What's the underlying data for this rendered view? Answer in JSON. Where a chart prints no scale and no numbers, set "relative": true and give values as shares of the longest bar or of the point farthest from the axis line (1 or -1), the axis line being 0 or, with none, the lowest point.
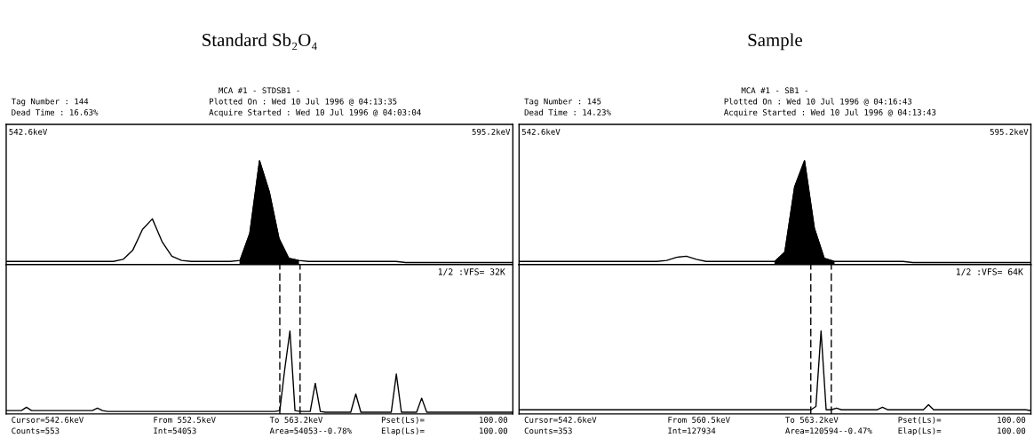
{
  "chart_data": [
    {
      "type": "line",
      "title": "Standard Sb₂O₄",
      "relative": true,
      "tick_labels": false,
      "categories": [
        null,
        null,
        null,
        null,
        null,
        null,
        null,
        null,
        null,
        null,
        null,
        null,
        null,
        null,
        null,
        null,
        null,
        null,
        null,
        null,
        null,
        null,
        null,
        null,
        null,
        null,
        null,
        null,
        null,
        null,
        null,
        null,
        null,
        null,
        null,
        null,
        null,
        null,
        null,
        null,
        null,
        null,
        null,
        null,
        null,
        null,
        null,
        null,
        null,
        null,
        null,
        null,
        null
      ],
      "series": [
        {
          "color": "#000000",
          "values": [
            0.03,
            0.03,
            0.03,
            0.03,
            0.03,
            0.03,
            0.03,
            0.03,
            0.03,
            0.03,
            0.03,
            0.03,
            0.05,
            0.14,
            0.34,
            0.44,
            0.22,
            0.08,
            0.04,
            0.03,
            0.03,
            0.03,
            0.03,
            0.03,
            0.04,
            0.3,
            1,
            0.7,
            0.25,
            0.06,
            0.04,
            0.03,
            0.03,
            0.03,
            0.03,
            0.03,
            0.03,
            0.03,
            0.03,
            0.03,
            0.03,
            0.02,
            0.02,
            0.02,
            0.02,
            0.02,
            0.02,
            0.02,
            0.02,
            0.02,
            0.02,
            0.02,
            0.02
          ]
        },
        {
          "type": "area",
          "color": "#000000",
          "values": [
            null,
            null,
            null,
            null,
            null,
            null,
            null,
            null,
            null,
            null,
            null,
            null,
            null,
            null,
            null,
            null,
            null,
            null,
            null,
            null,
            null,
            null,
            null,
            null,
            0.04,
            0.3,
            1,
            0.7,
            0.25,
            0.06,
            0.04,
            null,
            null,
            null,
            null,
            null,
            null,
            null,
            null,
            null,
            null,
            null,
            null,
            null,
            null,
            null,
            null,
            null,
            null,
            null,
            null,
            null,
            null
          ]
        }
      ],
      "annotations": [
        "MCA #1 - STDSB1 -",
        "Tag Number : 144",
        "Dead Time : 16.63%",
        "Plotted On : Wed 10 Jul 1996 @ 04:13:35",
        "Acquire Started : Wed 10 Jul 1996 @ 04:03:04",
        "542.6keV",
        "595.2keV"
      ]
    },
    {
      "type": "line",
      "relative": true,
      "tick_labels": false,
      "categories": [
        null,
        null,
        null,
        null,
        null,
        null,
        null,
        null,
        null,
        null,
        null,
        null,
        null,
        null,
        null,
        null,
        null,
        null,
        null,
        null,
        null,
        null,
        null,
        null,
        null,
        null,
        null,
        null,
        null,
        null,
        null,
        null,
        null,
        null,
        null,
        null,
        null,
        null,
        null,
        null,
        null,
        null,
        null,
        null,
        null,
        null,
        null,
        null,
        null,
        null,
        null,
        null,
        null,
        null,
        null,
        null,
        null,
        null,
        null,
        null,
        null,
        null,
        null,
        null,
        null,
        null,
        null,
        null,
        null,
        null,
        null,
        null,
        null,
        null,
        null,
        null,
        null,
        null,
        null,
        null,
        null,
        null,
        null,
        null,
        null,
        null,
        null,
        null,
        null,
        null,
        null,
        null,
        null,
        null,
        null,
        null,
        null,
        null,
        null,
        null,
        null
      ],
      "series": [
        {
          "color": "#000000",
          "values": [
            0.04,
            0.04,
            0.04,
            0.04,
            0.08,
            0.04,
            0.04,
            0.04,
            0.04,
            0.04,
            0.04,
            0.04,
            0.04,
            0.04,
            0.04,
            0.04,
            0.04,
            0.04,
            0.07,
            0.04,
            0.03,
            0.03,
            0.03,
            0.03,
            0.03,
            0.03,
            0.03,
            0.03,
            0.03,
            0.03,
            0.03,
            0.03,
            0.03,
            0.03,
            0.03,
            0.03,
            0.03,
            0.03,
            0.03,
            0.03,
            0.03,
            0.03,
            0.03,
            0.03,
            0.03,
            0.03,
            0.03,
            0.03,
            0.03,
            0.03,
            0.03,
            0.03,
            0.03,
            0.03,
            0.04,
            0.55,
            1,
            0.04,
            0.03,
            0.03,
            0.03,
            0.37,
            0.03,
            0.02,
            0.02,
            0.02,
            0.02,
            0.02,
            0.02,
            0.24,
            0.02,
            0.02,
            0.02,
            0.02,
            0.02,
            0.02,
            0.02,
            0.48,
            0.02,
            0.02,
            0.02,
            0.02,
            0.19,
            0.02,
            0.02,
            0.02,
            0.02,
            0.02,
            0.02,
            0.02,
            0.02,
            0.02,
            0.02,
            0.02,
            0.02,
            0.02,
            0.02,
            0.02,
            0.02,
            0.02,
            0.02
          ]
        }
      ],
      "annotations": [
        "1/2 :VFS= 32K",
        "Cursor=542.6keV",
        "From 552.5keV",
        "To 563.2keV",
        "Pset(Ls)=",
        "100.00",
        "Counts=553",
        "Int=54053",
        "Area=54053--0.78%",
        "Elap(Ls)=",
        "100.00"
      ]
    },
    {
      "type": "line",
      "title": "Sample",
      "relative": true,
      "tick_labels": false,
      "categories": [
        null,
        null,
        null,
        null,
        null,
        null,
        null,
        null,
        null,
        null,
        null,
        null,
        null,
        null,
        null,
        null,
        null,
        null,
        null,
        null,
        null,
        null,
        null,
        null,
        null,
        null,
        null,
        null,
        null,
        null,
        null,
        null,
        null,
        null,
        null,
        null,
        null,
        null,
        null,
        null,
        null,
        null,
        null,
        null,
        null,
        null,
        null,
        null,
        null,
        null,
        null,
        null,
        null
      ],
      "series": [
        {
          "color": "#000000",
          "values": [
            0.03,
            0.03,
            0.03,
            0.03,
            0.03,
            0.03,
            0.03,
            0.03,
            0.03,
            0.03,
            0.03,
            0.03,
            0.03,
            0.03,
            0.03,
            0.04,
            0.07,
            0.08,
            0.05,
            0.03,
            0.03,
            0.03,
            0.03,
            0.03,
            0.03,
            0.03,
            0.03,
            0.12,
            0.75,
            1,
            0.35,
            0.06,
            0.03,
            0.03,
            0.03,
            0.03,
            0.03,
            0.03,
            0.03,
            0.03,
            0.02,
            0.02,
            0.02,
            0.02,
            0.02,
            0.02,
            0.02,
            0.02,
            0.02,
            0.02,
            0.02,
            0.02,
            0.02
          ]
        },
        {
          "type": "area",
          "color": "#000000",
          "values": [
            null,
            null,
            null,
            null,
            null,
            null,
            null,
            null,
            null,
            null,
            null,
            null,
            null,
            null,
            null,
            null,
            null,
            null,
            null,
            null,
            null,
            null,
            null,
            null,
            null,
            null,
            0.03,
            0.12,
            0.75,
            1,
            0.35,
            0.06,
            0.03,
            null,
            null,
            null,
            null,
            null,
            null,
            null,
            null,
            null,
            null,
            null,
            null,
            null,
            null,
            null,
            null,
            null,
            null,
            null,
            null
          ]
        }
      ],
      "annotations": [
        "MCA #1 - SB1 -",
        "Tag Number : 145",
        "Dead Time : 14.23%",
        "Plotted On : Wed 10 Jul 1996 @ 04:16:43",
        "Acquire Started : Wed 10 Jul 1996 @ 04:13:43",
        "542.6keV",
        "595.2keV"
      ]
    },
    {
      "type": "line",
      "relative": true,
      "tick_labels": false,
      "categories": [
        null,
        null,
        null,
        null,
        null,
        null,
        null,
        null,
        null,
        null,
        null,
        null,
        null,
        null,
        null,
        null,
        null,
        null,
        null,
        null,
        null,
        null,
        null,
        null,
        null,
        null,
        null,
        null,
        null,
        null,
        null,
        null,
        null,
        null,
        null,
        null,
        null,
        null,
        null,
        null,
        null,
        null,
        null,
        null,
        null,
        null,
        null,
        null,
        null,
        null,
        null,
        null,
        null,
        null,
        null,
        null,
        null,
        null,
        null,
        null,
        null,
        null,
        null,
        null,
        null,
        null,
        null,
        null,
        null,
        null,
        null,
        null,
        null,
        null,
        null,
        null,
        null,
        null,
        null,
        null,
        null,
        null,
        null,
        null,
        null,
        null,
        null,
        null,
        null,
        null,
        null,
        null,
        null,
        null,
        null,
        null,
        null,
        null,
        null,
        null,
        null
      ],
      "series": [
        {
          "color": "#000000",
          "values": [
            0.05,
            0.05,
            0.05,
            0.05,
            0.05,
            0.05,
            0.05,
            0.05,
            0.05,
            0.05,
            0.05,
            0.05,
            0.05,
            0.05,
            0.05,
            0.05,
            0.05,
            0.05,
            0.05,
            0.05,
            0.05,
            0.05,
            0.05,
            0.05,
            0.05,
            0.05,
            0.05,
            0.05,
            0.05,
            0.05,
            0.05,
            0.05,
            0.05,
            0.05,
            0.05,
            0.05,
            0.05,
            0.05,
            0.05,
            0.05,
            0.05,
            0.05,
            0.05,
            0.05,
            0.05,
            0.05,
            0.05,
            0.05,
            0.05,
            0.05,
            0.05,
            0.05,
            0.05,
            0.05,
            0.05,
            0.05,
            0.05,
            0.05,
            0.09,
            1,
            0.05,
            0.05,
            0.07,
            0.05,
            0.05,
            0.05,
            0.05,
            0.05,
            0.05,
            0.05,
            0.05,
            0.08,
            0.05,
            0.05,
            0.05,
            0.05,
            0.05,
            0.05,
            0.05,
            0.05,
            0.11,
            0.05,
            0.05,
            0.05,
            0.05,
            0.05,
            0.05,
            0.05,
            0.05,
            0.05,
            0.05,
            0.05,
            0.05,
            0.05,
            0.05,
            0.05,
            0.05,
            0.05,
            0.05,
            0.05,
            0.04
          ]
        }
      ],
      "annotations": [
        "1/2 :VFS= 64K",
        "Cursor=542.6keV",
        "From 560.5keV",
        "To 563.2keV",
        "Pset(Ls)=",
        "100.00",
        "Counts=353",
        "Int=127934",
        "Area=120594--0.47%",
        "Elap(Ls)=",
        "100.00"
      ]
    }
  ]
}
